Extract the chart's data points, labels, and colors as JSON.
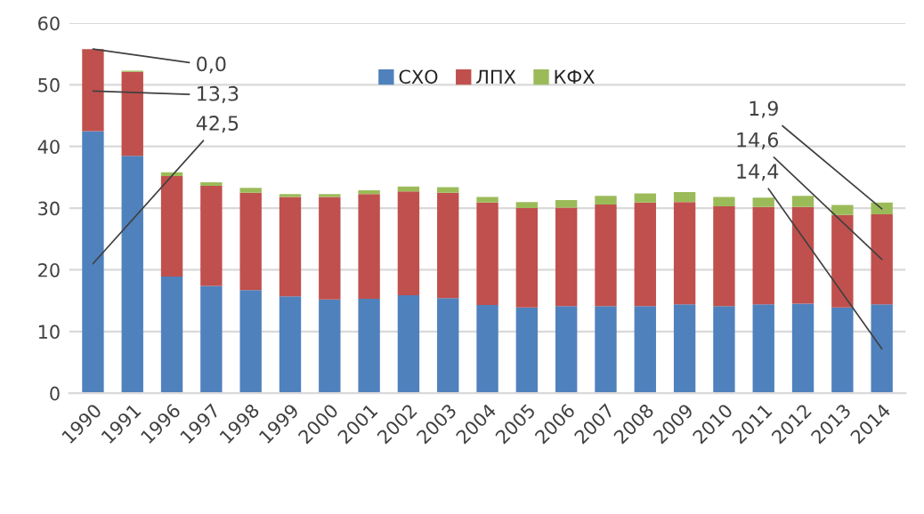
{
  "chart_data": {
    "type": "bar",
    "stacked": true,
    "categories": [
      "1990",
      "1991",
      "1996",
      "1997",
      "1998",
      "1999",
      "2000",
      "2001",
      "2002",
      "2003",
      "2004",
      "2005",
      "2006",
      "2007",
      "2008",
      "2009",
      "2010",
      "2011",
      "2012",
      "2013",
      "2014"
    ],
    "series": [
      {
        "name": "СХО",
        "color": "#4f81bd",
        "values": [
          42.5,
          38.5,
          18.9,
          17.4,
          16.7,
          15.7,
          15.2,
          15.3,
          15.9,
          15.4,
          14.3,
          13.9,
          14.1,
          14.1,
          14.1,
          14.4,
          14.1,
          14.4,
          14.5,
          13.9,
          14.4
        ]
      },
      {
        "name": "ЛПХ",
        "color": "#c0504d",
        "values": [
          13.3,
          13.6,
          16.3,
          16.2,
          15.8,
          16.1,
          16.6,
          17.0,
          16.8,
          17.1,
          16.6,
          16.1,
          16.0,
          16.5,
          16.8,
          16.6,
          16.2,
          15.8,
          15.7,
          15.0,
          14.6
        ]
      },
      {
        "name": "КФХ",
        "color": "#9bbb59",
        "values": [
          0.0,
          0.2,
          0.6,
          0.6,
          0.8,
          0.5,
          0.5,
          0.6,
          0.8,
          0.9,
          0.9,
          1.0,
          1.2,
          1.4,
          1.5,
          1.6,
          1.5,
          1.5,
          1.8,
          1.6,
          1.9
        ]
      }
    ],
    "ylim": [
      0,
      60
    ],
    "yticks": [
      0,
      10,
      20,
      30,
      40,
      50,
      60
    ],
    "grid": "y",
    "legend": "top",
    "annotations": [
      {
        "text": "0,0",
        "x": "1990",
        "y": 55.8
      },
      {
        "text": "13,3",
        "x": "1990",
        "y": 49.0
      },
      {
        "text": "42,5",
        "x": "1990",
        "y": 21.0
      },
      {
        "text": "1,9",
        "x": "2014",
        "y": 29.9
      },
      {
        "text": "14,6",
        "x": "2014",
        "y": 21.7
      },
      {
        "text": "14,4",
        "x": "2014",
        "y": 7.2
      }
    ]
  }
}
